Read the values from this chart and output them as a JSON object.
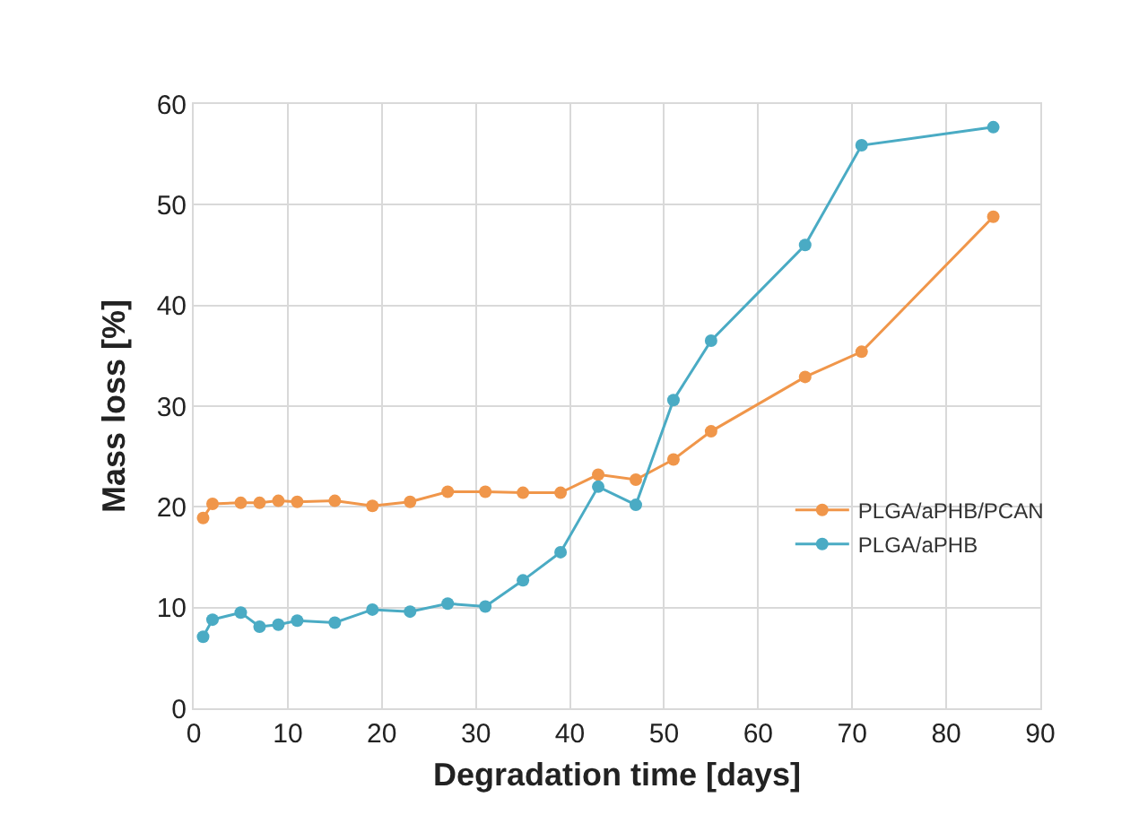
{
  "chart_data": {
    "type": "line",
    "xlabel": "Degradation time [days]",
    "ylabel": "Mass loss [%]",
    "x": [
      1,
      2,
      5,
      7,
      9,
      11,
      15,
      19,
      23,
      27,
      31,
      35,
      39,
      43,
      47,
      51,
      55,
      65,
      71,
      85
    ],
    "series": [
      {
        "name": "PLGA/aPHB/PCAN",
        "color": "#f0964a",
        "values": [
          18.9,
          20.3,
          20.4,
          20.4,
          20.6,
          20.5,
          20.6,
          20.1,
          20.5,
          21.5,
          21.5,
          21.4,
          21.4,
          23.2,
          22.7,
          24.7,
          27.5,
          32.9,
          35.4,
          48.8
        ]
      },
      {
        "name": "PLGA/aPHB",
        "color": "#4aabc4",
        "values": [
          7.1,
          8.8,
          9.5,
          8.1,
          8.3,
          8.7,
          8.5,
          9.8,
          9.6,
          10.4,
          10.1,
          12.7,
          15.5,
          22.0,
          20.2,
          30.6,
          36.5,
          46.0,
          55.9,
          57.7
        ]
      }
    ],
    "xlim": [
      0,
      90
    ],
    "xticks": [
      0,
      10,
      20,
      30,
      40,
      50,
      60,
      70,
      80,
      90
    ],
    "ylim": [
      0,
      60
    ],
    "yticks": [
      0,
      10,
      20,
      30,
      40,
      50,
      60
    ],
    "grid": true,
    "legend": "right",
    "marker": "circle",
    "line_style": "solid"
  }
}
